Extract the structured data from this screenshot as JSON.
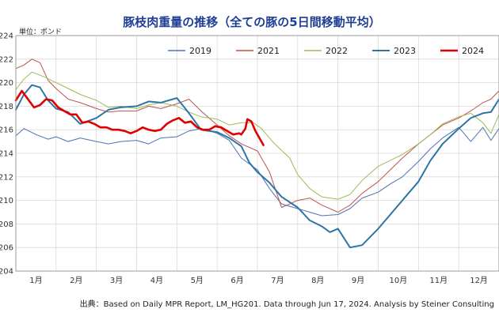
{
  "chart_data": {
    "type": "line",
    "title": "豚枝肉重量の推移（全ての豚の5日間移動平均）",
    "ylabel": "単位：ポンド",
    "xlabel": "",
    "ylim": [
      204,
      224
    ],
    "y_ticks": [
      204,
      206,
      208,
      210,
      212,
      214,
      216,
      218,
      220,
      222,
      224
    ],
    "x_range": [
      0,
      12
    ],
    "categories": [
      "1月",
      "2月",
      "3月",
      "4月",
      "5月",
      "6月",
      "7月",
      "8月",
      "9月",
      "10月",
      "11月",
      "12月"
    ],
    "grid": true,
    "legend": "top",
    "series": [
      {
        "name": "2019",
        "color": "#4a73b8",
        "width": 1,
        "x": [
          0,
          0.2,
          0.5,
          0.8,
          1.0,
          1.3,
          1.6,
          2.0,
          2.3,
          2.6,
          3.0,
          3.3,
          3.6,
          4.0,
          4.3,
          4.6,
          5.0,
          5.3,
          5.6,
          6.0,
          6.3,
          6.6,
          7.0,
          7.3,
          7.6,
          8.0,
          8.3,
          8.6,
          9.0,
          9.3,
          9.6,
          10.0,
          10.3,
          10.6,
          11.0,
          11.3,
          11.6,
          11.8,
          12.0
        ],
        "values": [
          215.5,
          216.1,
          215.6,
          215.2,
          215.4,
          215.0,
          215.3,
          215.0,
          214.8,
          215.0,
          215.1,
          214.8,
          215.3,
          215.4,
          215.9,
          216.1,
          215.7,
          215.1,
          213.6,
          212.6,
          211.0,
          209.7,
          209.3,
          209.0,
          208.7,
          208.8,
          209.3,
          210.2,
          210.7,
          211.4,
          212.0,
          213.3,
          214.4,
          215.3,
          216.2,
          215.0,
          216.2,
          215.1,
          216.1
        ]
      },
      {
        "name": "2021",
        "color": "#c0504d",
        "width": 1,
        "x": [
          0,
          0.2,
          0.4,
          0.6,
          0.8,
          1.0,
          1.3,
          1.6,
          2.0,
          2.3,
          2.6,
          3.0,
          3.3,
          3.6,
          4.0,
          4.3,
          4.6,
          5.0,
          5.3,
          5.6,
          6.0,
          6.3,
          6.6,
          7.0,
          7.3,
          7.6,
          8.0,
          8.3,
          8.6,
          9.0,
          9.3,
          9.6,
          10.0,
          10.3,
          10.6,
          11.0,
          11.3,
          11.6,
          11.8,
          12.0
        ],
        "values": [
          221.2,
          221.5,
          222.0,
          221.7,
          220.2,
          219.5,
          218.6,
          218.3,
          217.8,
          217.5,
          217.6,
          217.6,
          218.0,
          217.8,
          218.2,
          218.6,
          217.6,
          216.4,
          215.5,
          214.8,
          214.2,
          212.4,
          209.4,
          210.0,
          210.2,
          209.6,
          209.0,
          209.6,
          210.6,
          211.6,
          212.6,
          213.6,
          214.8,
          215.6,
          216.4,
          217.0,
          217.6,
          218.3,
          218.6,
          219.3
        ]
      },
      {
        "name": "2022",
        "color": "#9bbb59",
        "width": 1,
        "x": [
          0,
          0.2,
          0.4,
          0.7,
          1.0,
          1.3,
          1.6,
          2.0,
          2.3,
          2.6,
          3.0,
          3.3,
          3.6,
          4.0,
          4.3,
          4.6,
          5.0,
          5.3,
          5.6,
          5.9,
          6.1,
          6.4,
          6.8,
          7.0,
          7.3,
          7.6,
          8.0,
          8.3,
          8.6,
          9.0,
          9.3,
          9.6,
          10.0,
          10.3,
          10.6,
          11.0,
          11.3,
          11.6,
          11.8,
          12.0
        ],
        "values": [
          219.4,
          220.3,
          220.9,
          220.5,
          220.0,
          219.5,
          219.0,
          218.5,
          217.9,
          218.0,
          217.8,
          218.1,
          218.3,
          218.0,
          217.5,
          217.1,
          216.9,
          216.4,
          216.6,
          216.6,
          216.1,
          214.9,
          213.6,
          212.2,
          211.0,
          210.3,
          210.1,
          210.5,
          211.7,
          212.9,
          213.4,
          213.9,
          214.8,
          215.6,
          216.5,
          217.1,
          217.4,
          216.6,
          215.7,
          217.3
        ]
      },
      {
        "name": "2023",
        "color": "#2e75a3",
        "width": 2,
        "x": [
          0,
          0.2,
          0.4,
          0.6,
          0.8,
          1.0,
          1.3,
          1.6,
          2.0,
          2.3,
          2.6,
          3.0,
          3.3,
          3.6,
          4.0,
          4.3,
          4.6,
          5.0,
          5.3,
          5.6,
          5.8,
          6.0,
          6.3,
          6.6,
          7.0,
          7.3,
          7.6,
          7.8,
          8.0,
          8.3,
          8.6,
          9.0,
          9.3,
          9.6,
          10.0,
          10.3,
          10.6,
          11.0,
          11.3,
          11.6,
          11.8,
          12.0
        ],
        "values": [
          217.7,
          219.0,
          219.8,
          219.6,
          218.5,
          217.8,
          217.5,
          216.5,
          217.0,
          217.7,
          217.9,
          218.0,
          218.4,
          218.3,
          218.7,
          217.4,
          216.0,
          215.8,
          215.3,
          214.6,
          213.2,
          212.4,
          211.5,
          210.3,
          209.4,
          208.3,
          207.8,
          207.3,
          207.6,
          206.0,
          206.2,
          207.6,
          208.8,
          210.0,
          211.6,
          213.4,
          214.8,
          216.1,
          217.0,
          217.4,
          217.5,
          218.6
        ]
      },
      {
        "name": "2024",
        "color": "#e00000",
        "width": 2.6,
        "x": [
          0,
          0.15,
          0.3,
          0.45,
          0.6,
          0.75,
          0.9,
          1.05,
          1.2,
          1.35,
          1.5,
          1.65,
          1.8,
          1.95,
          2.1,
          2.25,
          2.4,
          2.55,
          2.7,
          2.85,
          3.0,
          3.15,
          3.3,
          3.45,
          3.6,
          3.75,
          3.9,
          4.05,
          4.2,
          4.35,
          4.5,
          4.65,
          4.8,
          4.95,
          5.1,
          5.25,
          5.4,
          5.55,
          5.6,
          5.7,
          5.75,
          5.85,
          5.95,
          6.05,
          6.15
        ],
        "values": [
          218.5,
          219.3,
          218.6,
          217.9,
          218.1,
          218.6,
          218.5,
          217.9,
          217.6,
          217.3,
          217.3,
          216.6,
          216.7,
          216.5,
          216.2,
          216.2,
          216.0,
          216.0,
          215.9,
          215.7,
          215.9,
          216.2,
          216.0,
          215.9,
          216.0,
          216.5,
          216.8,
          217.0,
          216.6,
          216.7,
          216.2,
          216.0,
          216.0,
          216.3,
          216.2,
          215.9,
          215.6,
          215.7,
          215.6,
          216.1,
          216.9,
          216.7,
          215.9,
          215.3,
          214.7
        ]
      }
    ],
    "source": "出典：Based on Daily MPR Report, LM_HG201. Data through Jun 17, 2024. Analysis by Steiner Consulting"
  }
}
